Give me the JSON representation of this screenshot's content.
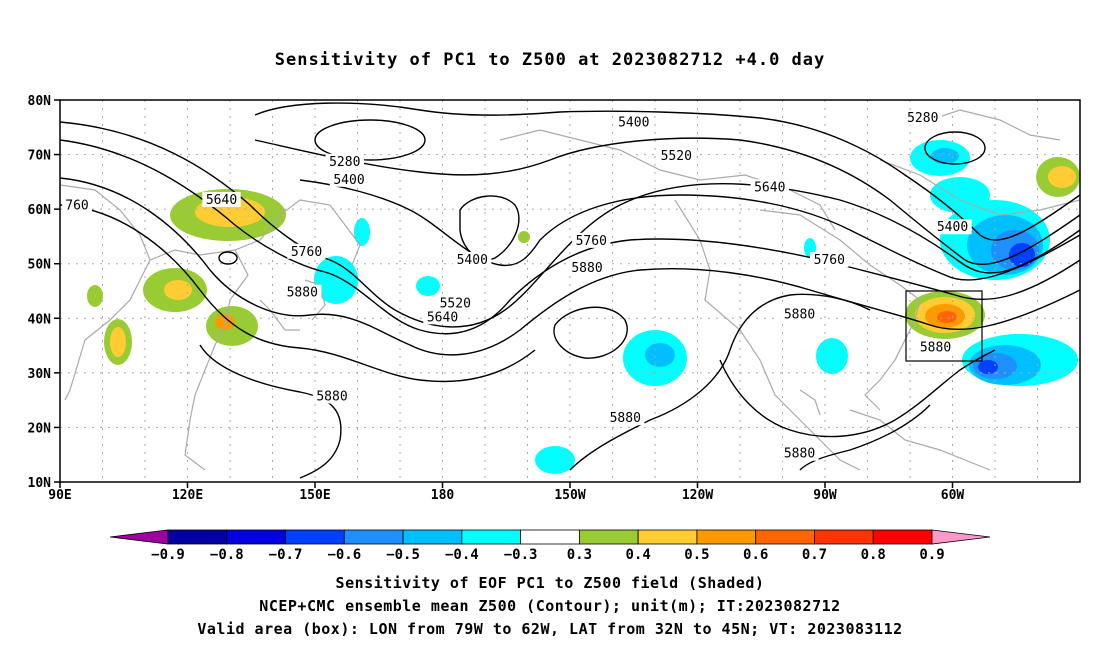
{
  "title": "Sensitivity of PC1 to Z500 at 2023082712 +4.0 day",
  "lat_labels": [
    "80N",
    "70N",
    "60N",
    "50N",
    "40N",
    "30N",
    "20N",
    "10N"
  ],
  "lon_labels": [
    "90E",
    "120E",
    "150E",
    "180",
    "150W",
    "120W",
    "90W",
    "60W"
  ],
  "contour_labels": [
    {
      "text": "5280",
      "lon": 157,
      "lat": 68.5
    },
    {
      "text": "5400",
      "lon": 158,
      "lat": 65.2
    },
    {
      "text": "5400",
      "lon": -135,
      "lat": 75.7
    },
    {
      "text": "5520",
      "lon": -125,
      "lat": 69.6
    },
    {
      "text": "5640",
      "lon": -103,
      "lat": 63.8
    },
    {
      "text": "5280",
      "lon": -67,
      "lat": 76.5
    },
    {
      "text": "5640",
      "lon": 128,
      "lat": 61.5
    },
    {
      "text": "760",
      "lon": 94,
      "lat": 60.5
    },
    {
      "text": "5760",
      "lon": 148,
      "lat": 52
    },
    {
      "text": "5880",
      "lon": 147,
      "lat": 44.5
    },
    {
      "text": "5400",
      "lon": -173,
      "lat": 50.5
    },
    {
      "text": "5520",
      "lon": -177,
      "lat": 42.5
    },
    {
      "text": "5640",
      "lon": -180,
      "lat": 40
    },
    {
      "text": "5760",
      "lon": -145,
      "lat": 54
    },
    {
      "text": "5880",
      "lon": -146,
      "lat": 49
    },
    {
      "text": "5760",
      "lon": -89,
      "lat": 50.5
    },
    {
      "text": "5400",
      "lon": -60,
      "lat": 56.5
    },
    {
      "text": "5880",
      "lon": -96,
      "lat": 40.5
    },
    {
      "text": "5880",
      "lon": -64,
      "lat": 34.5
    },
    {
      "text": "5880",
      "lon": 154,
      "lat": 25.5
    },
    {
      "text": "5880",
      "lon": -137,
      "lat": 21.5
    },
    {
      "text": "5880",
      "lon": -96,
      "lat": 15
    }
  ],
  "colorbar": {
    "labels": [
      "−0.9",
      "−0.8",
      "−0.7",
      "−0.6",
      "−0.5",
      "−0.4",
      "−0.3",
      "0.3",
      "0.4",
      "0.5",
      "0.6",
      "0.7",
      "0.8",
      "0.9"
    ],
    "colors": [
      "#a000a0",
      "#0000a0",
      "#0000e0",
      "#0040ff",
      "#1e90ff",
      "#00bfff",
      "#00ffff",
      "#ffffff",
      "#99cc33",
      "#ffcc33",
      "#ff9900",
      "#ff6600",
      "#ff3300",
      "#ff0000",
      "#ff99cc"
    ]
  },
  "validity_box": {
    "lon_from": "79W",
    "lon_to": "62W",
    "lat_from": "32N",
    "lat_to": "45N"
  },
  "captions": [
    "Sensitivity of EOF PC1 to Z500 field (Shaded)",
    "NCEP+CMC ensemble mean Z500 (Contour); unit(m); IT:2023082712",
    "Valid area (box): LON from 79W to 62W, LAT from 32N to 45N; VT: 2023083112"
  ]
}
